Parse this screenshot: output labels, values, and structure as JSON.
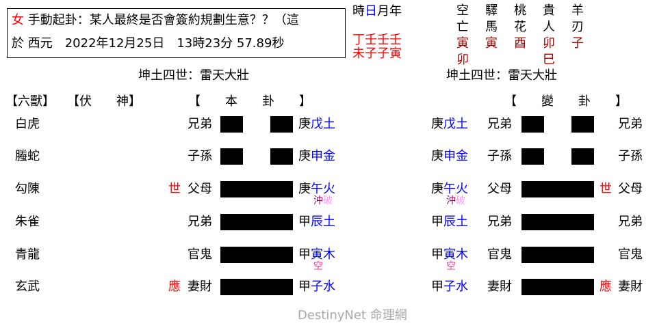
{
  "header": {
    "gender": "女",
    "question": "手動起卦：某人最終是否會簽約規劃生意？？（這",
    "date_line": "於 西元　2022年12月25日　13時23分 57.89秒"
  },
  "ganzhi": {
    "labels": [
      "時",
      "日",
      "月",
      "年"
    ],
    "stems": "丁壬壬壬",
    "branches": "未子子寅"
  },
  "shensha": [
    {
      "name": [
        "空",
        "亡"
      ],
      "values": [
        "寅",
        "卯"
      ]
    },
    {
      "name": [
        "驛",
        "馬"
      ],
      "values": [
        "寅"
      ]
    },
    {
      "name": [
        "桃",
        "花"
      ],
      "values": [
        "酉"
      ]
    },
    {
      "name": [
        "貴",
        "人"
      ],
      "values": [
        "卯",
        "巳"
      ]
    },
    {
      "name": [
        "羊",
        "刃"
      ],
      "values": [
        "子"
      ]
    }
  ],
  "main_title": "坤土四世：雷天大壯",
  "changed_title": "坤土四世：雷天大壯",
  "col_headers": {
    "beasts": "【六獸】",
    "hidden": "【伏　　神】",
    "main": "【　　本　　卦　　】",
    "changed": "【　　變　　卦　　】"
  },
  "lines": [
    {
      "beast": "白虎",
      "relation": "兄弟",
      "yang": false,
      "stem": "庚",
      "branch": "戊土",
      "mark": "",
      "notes": []
    },
    {
      "beast": "螣蛇",
      "relation": "子孫",
      "yang": false,
      "stem": "庚",
      "branch": "申金",
      "mark": "",
      "notes": []
    },
    {
      "beast": "勾陳",
      "relation": "父母",
      "yang": true,
      "stem": "庚",
      "branch": "午火",
      "mark": "世",
      "notes": [
        {
          "text": "沖",
          "color": "#990066"
        },
        {
          "text": "破",
          "color": "#ff99ff"
        }
      ]
    },
    {
      "beast": "朱雀",
      "relation": "兄弟",
      "yang": true,
      "stem": "甲",
      "branch": "辰土",
      "mark": "",
      "notes": []
    },
    {
      "beast": "青龍",
      "relation": "官鬼",
      "yang": true,
      "stem": "甲",
      "branch": "寅木",
      "mark": "",
      "notes": [
        {
          "text": "空",
          "color": "#ff3399"
        }
      ]
    },
    {
      "beast": "玄武",
      "relation": "妻財",
      "yang": true,
      "stem": "甲",
      "branch": "子水",
      "mark": "應",
      "notes": []
    }
  ],
  "colors": {
    "accent_red": "#ff0000",
    "shensha_red": "#aa0000",
    "branch_blue": "#0000ff",
    "line": "#000000"
  },
  "watermark": "DestinyNet 命理網"
}
